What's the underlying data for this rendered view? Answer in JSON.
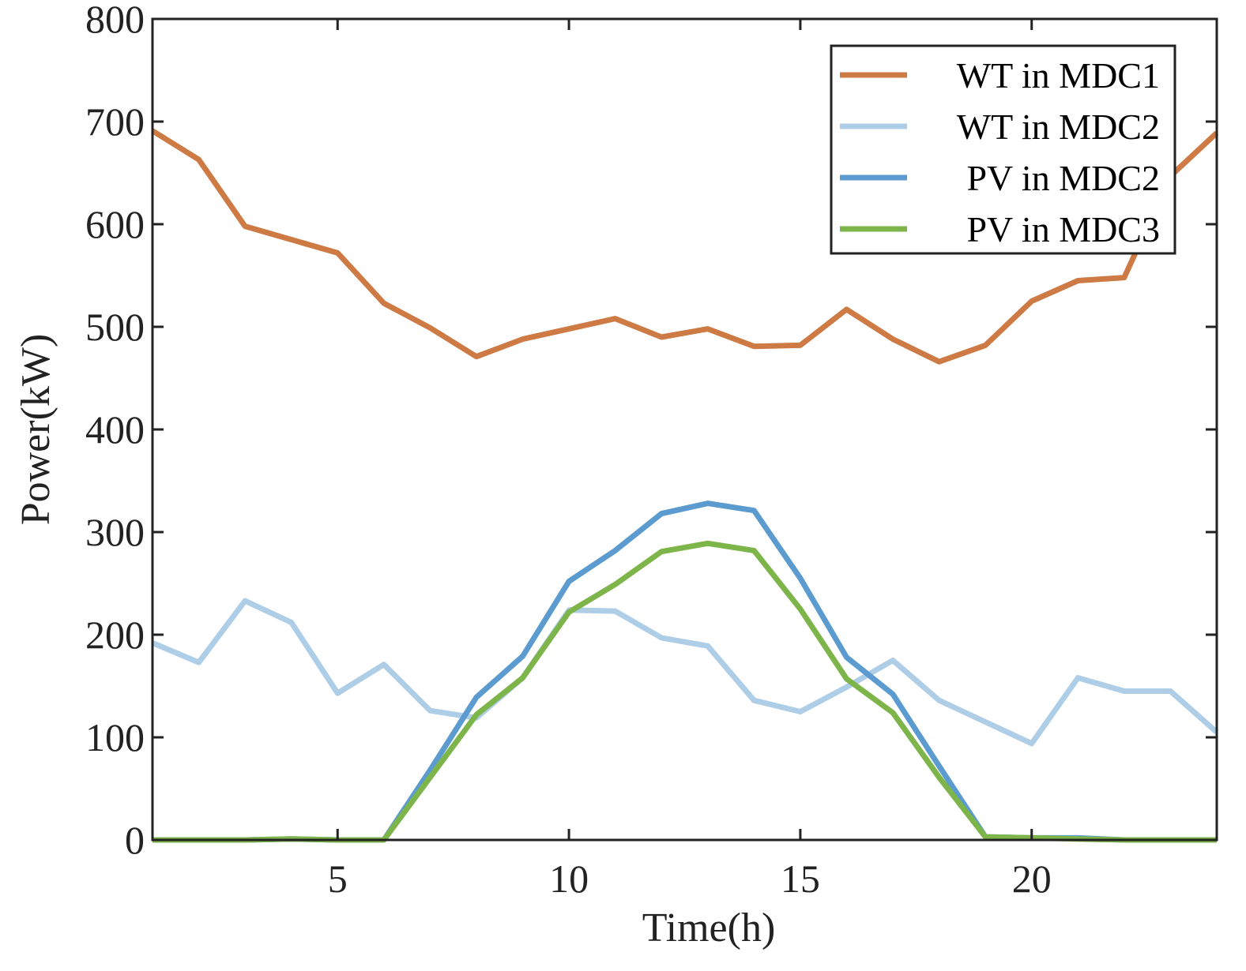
{
  "chart_data": {
    "type": "line",
    "title": "",
    "xlabel": "Time(h)",
    "ylabel": "Power(kW)",
    "xlim": [
      1,
      24
    ],
    "ylim": [
      0,
      800
    ],
    "xticks": [
      5,
      10,
      15,
      20
    ],
    "yticks": [
      0,
      100,
      200,
      300,
      400,
      500,
      600,
      700,
      800
    ],
    "grid": false,
    "legend_position": "top-right",
    "x": [
      1,
      2,
      3,
      4,
      5,
      6,
      7,
      8,
      9,
      10,
      11,
      12,
      13,
      14,
      15,
      16,
      17,
      18,
      19,
      20,
      21,
      22,
      23,
      24
    ],
    "series": [
      {
        "name": "WT in MDC1",
        "color": "#CD7A44",
        "values": [
          691,
          663,
          598,
          585,
          572,
          523,
          499,
          471,
          488,
          498,
          508,
          490,
          498,
          481,
          482,
          517,
          488,
          466,
          482,
          525,
          545,
          548,
          647,
          689
        ]
      },
      {
        "name": "WT in MDC2",
        "color": "#AECDE6",
        "values": [
          192,
          173,
          233,
          212,
          143,
          171,
          126,
          119,
          158,
          224,
          223,
          197,
          189,
          136,
          125,
          149,
          175,
          136,
          115,
          94,
          158,
          145,
          145,
          105
        ]
      },
      {
        "name": "PV in MDC2",
        "color": "#5B9BCF",
        "values": [
          0,
          0,
          0,
          1,
          0,
          0,
          68,
          139,
          179,
          252,
          282,
          318,
          328,
          321,
          255,
          178,
          142,
          72,
          3,
          2,
          2,
          0,
          0,
          0
        ]
      },
      {
        "name": "PV in MDC3",
        "color": "#7DB54A",
        "values": [
          0,
          0,
          0,
          1,
          0,
          0,
          61,
          122,
          158,
          222,
          249,
          281,
          289,
          282,
          225,
          157,
          124,
          61,
          3,
          2,
          1,
          0,
          0,
          0
        ]
      }
    ]
  }
}
